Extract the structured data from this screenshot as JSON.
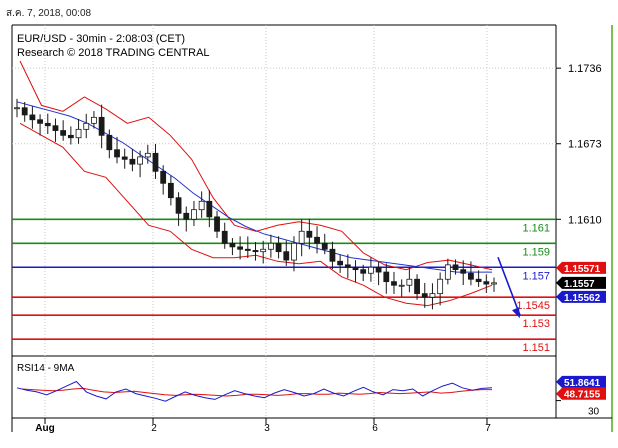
{
  "header": {
    "date_text": "ส.ค. 7, 2018, 00:08",
    "line1": "EUR/USD - 30min - 2:08:03 (CET)",
    "line2": "Research © 2018 TRADING CENTRAL"
  },
  "colors": {
    "candle": "#1a1a1a",
    "bollinger": "#e01010",
    "ma": "#2233cc",
    "support_line": "#e01010",
    "resistance_line": "#1a8a1a",
    "pivot_line": "#1a1acc",
    "arrow": "#1a1acc",
    "rsi": "#1a1acc",
    "rsi_ma": "#e01010",
    "price_tag_current": "#000000",
    "price_tag_red": "#e01010",
    "price_tag_blue": "#1a1acc",
    "grid": "#c8c8c8",
    "frame_right": "#7fbf4f"
  },
  "chart_data": [
    {
      "type": "line",
      "subtype": "candlestick",
      "title": "EUR/USD - 30min - 2:08:03 (CET)",
      "subtitle": "Research © 2018 TRADING CENTRAL",
      "ylim": [
        1.1496,
        1.1772
      ],
      "x_ticks": [
        "Aug",
        "2",
        "3",
        "6",
        "7"
      ],
      "y_ticks": [
        "1.1736",
        "1.1673",
        "1.1610"
      ],
      "grid": true,
      "levels": [
        {
          "label": "1.161",
          "value": 1.161,
          "kind": "resistance"
        },
        {
          "label": "1.159",
          "value": 1.159,
          "kind": "resistance"
        },
        {
          "label": "1.157",
          "value": 1.157,
          "kind": "pivot"
        },
        {
          "label": "1.1545",
          "value": 1.1545,
          "kind": "support"
        },
        {
          "label": "1.153",
          "value": 1.153,
          "kind": "support"
        },
        {
          "label": "1.151",
          "value": 1.151,
          "kind": "support"
        }
      ],
      "price_tags": [
        {
          "label": "1.15571",
          "value": 1.15571,
          "kind": "red"
        },
        {
          "label": "1.1557",
          "value": 1.1557,
          "kind": "current"
        },
        {
          "label": "1.15562",
          "value": 1.15562,
          "kind": "blue"
        }
      ],
      "price_path": [
        1.1703,
        1.1697,
        1.1693,
        1.169,
        1.1688,
        1.1684,
        1.168,
        1.1678,
        1.1685,
        1.169,
        1.1695,
        1.168,
        1.1668,
        1.1662,
        1.166,
        1.1656,
        1.1662,
        1.1665,
        1.165,
        1.164,
        1.1628,
        1.1615,
        1.161,
        1.1618,
        1.1625,
        1.1612,
        1.16,
        1.159,
        1.1587,
        1.1585,
        1.1584,
        1.1583,
        1.1585,
        1.159,
        1.1583,
        1.1576,
        1.159,
        1.16,
        1.1595,
        1.159,
        1.1585,
        1.1575,
        1.1572,
        1.157,
        1.1568,
        1.1565,
        1.157,
        1.1566,
        1.1558,
        1.1555,
        1.1555,
        1.156,
        1.1548,
        1.1545,
        1.1548,
        1.156,
        1.1572,
        1.1568,
        1.1565,
        1.156,
        1.1558,
        1.1556,
        1.1557
      ],
      "ma_path": [
        1.1708,
        1.1704,
        1.17,
        1.1696,
        1.169,
        1.1682,
        1.1674,
        1.1664,
        1.1654,
        1.1644,
        1.1632,
        1.1622,
        1.1612,
        1.1604,
        1.1598,
        1.1594,
        1.159,
        1.1586,
        1.1582,
        1.1578,
        1.1576,
        1.1574,
        1.1572,
        1.157,
        1.1568,
        1.1566,
        1.1566,
        1.1566
      ],
      "bb_upper": [
        1.1742,
        1.1705,
        1.17,
        1.1712,
        1.1702,
        1.169,
        1.1695,
        1.168,
        1.166,
        1.1628,
        1.1605,
        1.16,
        1.1605,
        1.1608,
        1.1605,
        1.16,
        1.1582,
        1.1572,
        1.1568,
        1.1574,
        1.1576,
        1.1572,
        1.1568
      ],
      "bb_lower": [
        1.169,
        1.168,
        1.167,
        1.165,
        1.1645,
        1.1625,
        1.1605,
        1.16,
        1.1585,
        1.1578,
        1.1578,
        1.158,
        1.1575,
        1.1573,
        1.1575,
        1.1562,
        1.1555,
        1.1545,
        1.154,
        1.1538,
        1.1542,
        1.1548,
        1.1555
      ],
      "forecast_arrow": {
        "from": 1.156,
        "to": 1.153
      }
    },
    {
      "type": "line",
      "title": "RSI14 - 9MA",
      "ylim": [
        0,
        100
      ],
      "series": [
        {
          "name": "RSI14",
          "values": [
            52,
            48,
            45,
            40,
            47,
            55,
            63,
            45,
            38,
            33,
            45,
            50,
            42,
            38,
            34,
            29,
            37,
            45,
            39,
            35,
            32,
            40,
            47,
            42,
            38,
            35,
            43,
            49,
            44,
            38,
            42,
            50,
            43,
            38,
            46,
            53,
            45,
            40,
            49,
            47,
            50,
            38,
            47,
            55,
            60,
            52,
            48,
            51,
            52
          ]
        },
        {
          "name": "9MA",
          "values": [
            50,
            49,
            48,
            47,
            48,
            50,
            51,
            48,
            45,
            44,
            45,
            46,
            44,
            42,
            40,
            39,
            40,
            41,
            40,
            39,
            38,
            39,
            41,
            41,
            40,
            39,
            40,
            42,
            42,
            41,
            41,
            43,
            42,
            41,
            42,
            44,
            43,
            42,
            43,
            44,
            45,
            43,
            44,
            46,
            48,
            49,
            49
          ]
        }
      ],
      "value_tags": [
        {
          "label": "51.8641",
          "value": 51.8641,
          "kind": "blue"
        },
        {
          "label": "48.7155",
          "value": 48.7155,
          "kind": "red"
        }
      ],
      "y_ticks": [
        "30"
      ]
    }
  ]
}
